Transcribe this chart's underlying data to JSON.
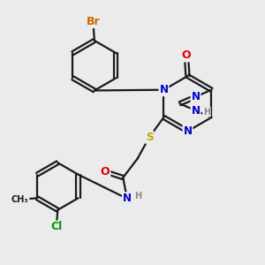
{
  "bg_color": "#ebebeb",
  "bond_color": "#1a1a1a",
  "bond_width": 1.6,
  "atom_colors": {
    "C": "#1a1a1a",
    "N": "#0000cc",
    "O": "#dd0000",
    "S": "#bbaa00",
    "Br": "#cc6600",
    "Cl": "#009900",
    "H": "#888888"
  },
  "font_size": 8.5,
  "fig_size": [
    3.0,
    3.0
  ],
  "dpi": 100,
  "xlim": [
    0,
    10
  ],
  "ylim": [
    0,
    10
  ]
}
